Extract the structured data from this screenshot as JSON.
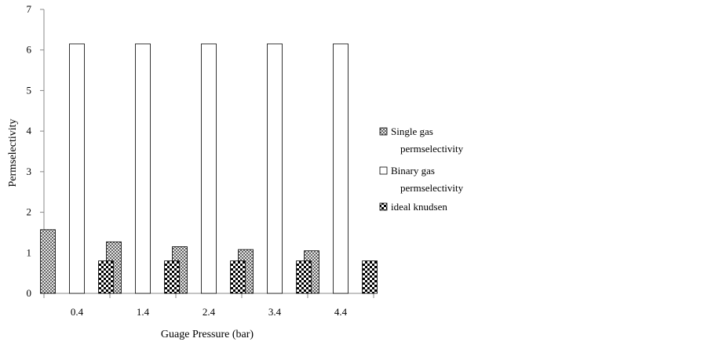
{
  "chart_data": {
    "type": "bar",
    "xlabel": "Guage Pressure (bar)",
    "ylabel": "Permselectivity",
    "ylim": [
      0,
      7
    ],
    "yticks": [
      0,
      1,
      2,
      3,
      4,
      5,
      6,
      7
    ],
    "categories": [
      "0.4",
      "1.4",
      "2.4",
      "3.4",
      "4.4"
    ],
    "grid": false,
    "legend_position": "right",
    "series": [
      {
        "name_lines": [
          "Single gas",
          "permselectivity"
        ],
        "pattern": "dots",
        "values": [
          1.57,
          1.27,
          1.15,
          1.08,
          1.05
        ]
      },
      {
        "name_lines": [
          "Binary gas",
          "permselectivity"
        ],
        "pattern": "white",
        "values": [
          6.15,
          6.15,
          6.15,
          6.15,
          6.15
        ]
      },
      {
        "name_lines": [
          "ideal knudsen"
        ],
        "pattern": "checker",
        "values": [
          0.8,
          0.8,
          0.8,
          0.8,
          0.8
        ]
      }
    ]
  }
}
